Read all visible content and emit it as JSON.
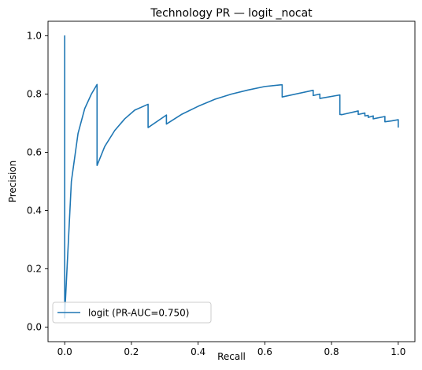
{
  "chart_data": {
    "type": "line",
    "title": "Technology PR — logit _nocat",
    "xlabel": "Recall",
    "ylabel": "Precision",
    "xlim": [
      -0.05,
      1.05
    ],
    "ylim": [
      -0.05,
      1.05
    ],
    "xticks": [
      0.0,
      0.2,
      0.4,
      0.6,
      0.8,
      1.0
    ],
    "xtick_labels": [
      "0.0",
      "0.2",
      "0.4",
      "0.6",
      "0.8",
      "1.0"
    ],
    "yticks": [
      0.0,
      0.2,
      0.4,
      0.6,
      0.8,
      1.0
    ],
    "ytick_labels": [
      "0.0",
      "0.2",
      "0.4",
      "0.6",
      "0.8",
      "1.0"
    ],
    "grid": false,
    "legend_position": "lower-left",
    "colors": {
      "series": "#1f77b4"
    },
    "series": [
      {
        "name": "logit (PR-AUC=0.750)",
        "x": [
          0.0,
          0.0,
          0.0,
          0.02,
          0.04,
          0.06,
          0.08,
          0.097,
          0.097,
          0.12,
          0.15,
          0.18,
          0.21,
          0.25,
          0.25,
          0.305,
          0.305,
          0.35,
          0.4,
          0.45,
          0.5,
          0.55,
          0.6,
          0.65,
          0.652,
          0.652,
          0.745,
          0.745,
          0.765,
          0.765,
          0.825,
          0.825,
          0.83,
          0.83,
          0.88,
          0.88,
          0.9,
          0.9,
          0.91,
          0.91,
          0.925,
          0.925,
          0.96,
          0.96,
          0.98,
          0.99,
          1.0,
          1.0
        ],
        "y": [
          0.03,
          1.0,
          0.04,
          0.5,
          0.665,
          0.75,
          0.8,
          0.833,
          0.555,
          0.62,
          0.675,
          0.715,
          0.745,
          0.765,
          0.685,
          0.728,
          0.697,
          0.73,
          0.758,
          0.782,
          0.8,
          0.814,
          0.826,
          0.832,
          0.832,
          0.79,
          0.813,
          0.795,
          0.8,
          0.785,
          0.797,
          0.73,
          0.73,
          0.729,
          0.742,
          0.73,
          0.735,
          0.725,
          0.727,
          0.72,
          0.725,
          0.715,
          0.723,
          0.705,
          0.708,
          0.71,
          0.712,
          0.685
        ]
      }
    ]
  }
}
